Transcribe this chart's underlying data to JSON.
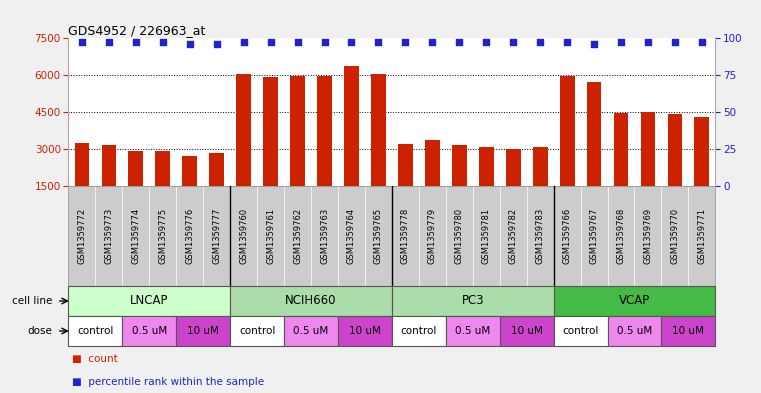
{
  "title": "GDS4952 / 226963_at",
  "samples": [
    "GSM1359772",
    "GSM1359773",
    "GSM1359774",
    "GSM1359775",
    "GSM1359776",
    "GSM1359777",
    "GSM1359760",
    "GSM1359761",
    "GSM1359762",
    "GSM1359763",
    "GSM1359764",
    "GSM1359765",
    "GSM1359778",
    "GSM1359779",
    "GSM1359780",
    "GSM1359781",
    "GSM1359782",
    "GSM1359783",
    "GSM1359766",
    "GSM1359767",
    "GSM1359768",
    "GSM1359769",
    "GSM1359770",
    "GSM1359771"
  ],
  "counts": [
    3250,
    3180,
    2930,
    2930,
    2700,
    2820,
    6060,
    5930,
    5960,
    5960,
    6350,
    6060,
    3220,
    3350,
    3150,
    3100,
    3010,
    3100,
    5940,
    5700,
    4450,
    4480,
    4430,
    4280
  ],
  "percentile_ranks": [
    97,
    97,
    97,
    97,
    96,
    96,
    97,
    97,
    97,
    97,
    97,
    97,
    97,
    97,
    97,
    97,
    97,
    97,
    97,
    96,
    97,
    97,
    97,
    97
  ],
  "bar_color": "#cc2200",
  "dot_color": "#2222cc",
  "cell_lines": [
    {
      "name": "LNCAP",
      "start": 0,
      "end": 6,
      "color": "#ccffcc"
    },
    {
      "name": "NCIH660",
      "start": 6,
      "end": 12,
      "color": "#88ee88"
    },
    {
      "name": "PC3",
      "start": 12,
      "end": 18,
      "color": "#88ee88"
    },
    {
      "name": "VCAP",
      "start": 18,
      "end": 24,
      "color": "#44cc44"
    }
  ],
  "doses": [
    {
      "name": "control",
      "start": 0,
      "end": 2,
      "color": "#ffffff"
    },
    {
      "name": "0.5 uM",
      "start": 2,
      "end": 4,
      "color": "#ee88ee"
    },
    {
      "name": "10 uM",
      "start": 4,
      "end": 6,
      "color": "#dd44dd"
    },
    {
      "name": "control",
      "start": 6,
      "end": 8,
      "color": "#ffffff"
    },
    {
      "name": "0.5 uM",
      "start": 8,
      "end": 10,
      "color": "#ee88ee"
    },
    {
      "name": "10 uM",
      "start": 10,
      "end": 12,
      "color": "#dd44dd"
    },
    {
      "name": "control",
      "start": 12,
      "end": 14,
      "color": "#ffffff"
    },
    {
      "name": "0.5 uM",
      "start": 14,
      "end": 16,
      "color": "#ee88ee"
    },
    {
      "name": "10 uM",
      "start": 16,
      "end": 18,
      "color": "#dd44dd"
    },
    {
      "name": "control",
      "start": 18,
      "end": 20,
      "color": "#ffffff"
    },
    {
      "name": "0.5 uM",
      "start": 20,
      "end": 22,
      "color": "#ee88ee"
    },
    {
      "name": "10 uM",
      "start": 22,
      "end": 24,
      "color": "#dd44dd"
    }
  ],
  "ylim_left": [
    1500,
    7500
  ],
  "ylim_right": [
    0,
    100
  ],
  "yticks_left": [
    1500,
    3000,
    4500,
    6000,
    7500
  ],
  "yticks_right": [
    0,
    25,
    50,
    75,
    100
  ],
  "ylabel_left_color": "#cc2200",
  "ylabel_right_color": "#2222cc",
  "grid_lines": [
    3000,
    4500,
    6000
  ],
  "group_separators": [
    5.5,
    11.5,
    17.5
  ],
  "n_samples": 24,
  "label_area_color": "#cccccc",
  "cell_line_label": "cell line",
  "dose_label": "dose"
}
